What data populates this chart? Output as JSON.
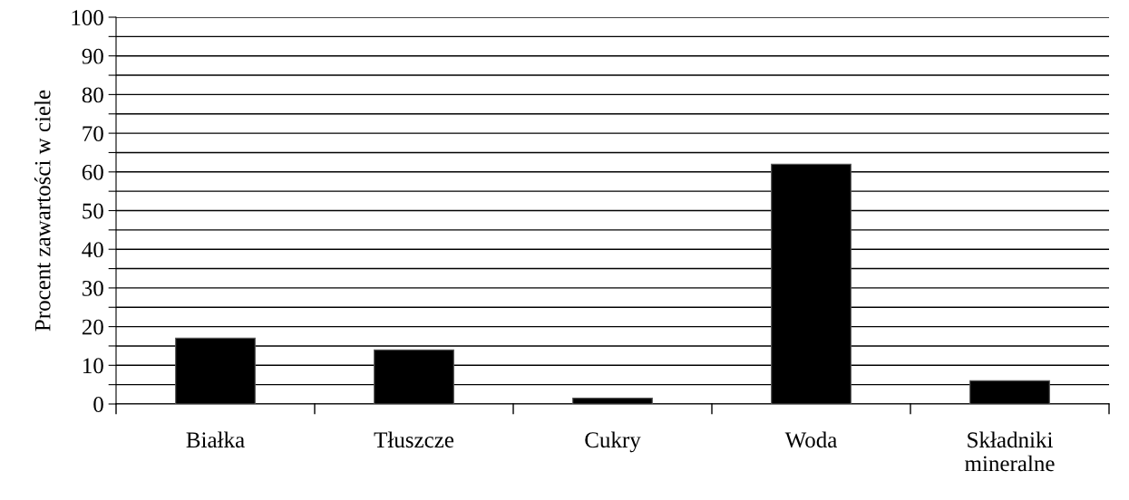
{
  "chart_data": {
    "type": "bar",
    "ylabel": "Procent zawartości w ciele",
    "categories": [
      "Białka",
      "Tłuszcze",
      "Cukry",
      "Woda",
      "Składniki\nmineralne"
    ],
    "values": [
      17,
      14,
      1.5,
      62,
      6
    ],
    "color": "#000000",
    "ylim": [
      0,
      100
    ],
    "yticks": [
      0,
      {
        "value": 5,
        "label": null
      },
      10,
      {
        "value": 15,
        "label": null
      },
      20,
      {
        "value": 25,
        "label": null
      },
      30,
      {
        "value": 35,
        "label": null
      },
      40,
      {
        "value": 45,
        "label": null
      },
      50,
      {
        "value": 55,
        "label": null
      },
      60,
      {
        "value": 65,
        "label": null
      },
      70,
      {
        "value": 75,
        "label": null
      },
      80,
      {
        "value": 85,
        "label": null
      },
      90,
      {
        "value": 95,
        "label": null
      },
      100
    ],
    "grid": "y"
  }
}
